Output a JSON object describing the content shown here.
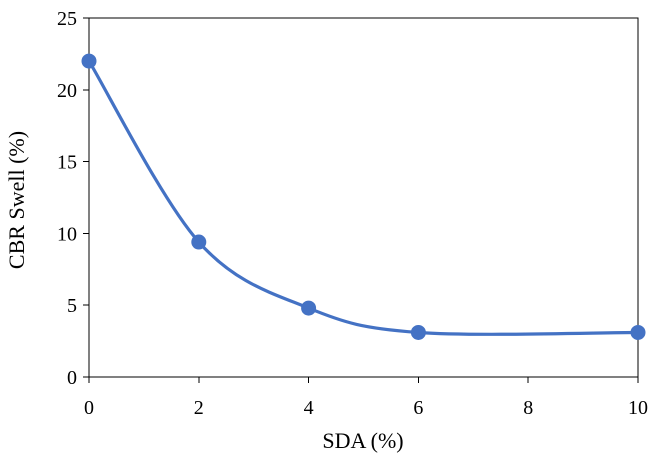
{
  "chart_data": {
    "type": "line",
    "title": "",
    "xlabel": "SDA (%)",
    "ylabel": "CBR Swell  (%)",
    "xlim": [
      0,
      10
    ],
    "ylim": [
      0,
      25
    ],
    "x_ticks": [
      0,
      2,
      4,
      6,
      8,
      10
    ],
    "y_ticks": [
      0,
      5,
      10,
      15,
      20,
      25
    ],
    "x_tick_labels": [
      "0",
      "2",
      "4",
      "6",
      "8",
      "10"
    ],
    "y_tick_labels": [
      "0",
      "5",
      "10",
      "15",
      "20",
      "25"
    ],
    "grid": false,
    "legend": "none",
    "smooth": true,
    "series": [
      {
        "x": [
          0,
          2,
          4,
          6,
          10
        ],
        "y": [
          22.0,
          9.4,
          4.8,
          3.1,
          3.1
        ],
        "color": "#4472C4",
        "marker": "circle"
      }
    ]
  }
}
